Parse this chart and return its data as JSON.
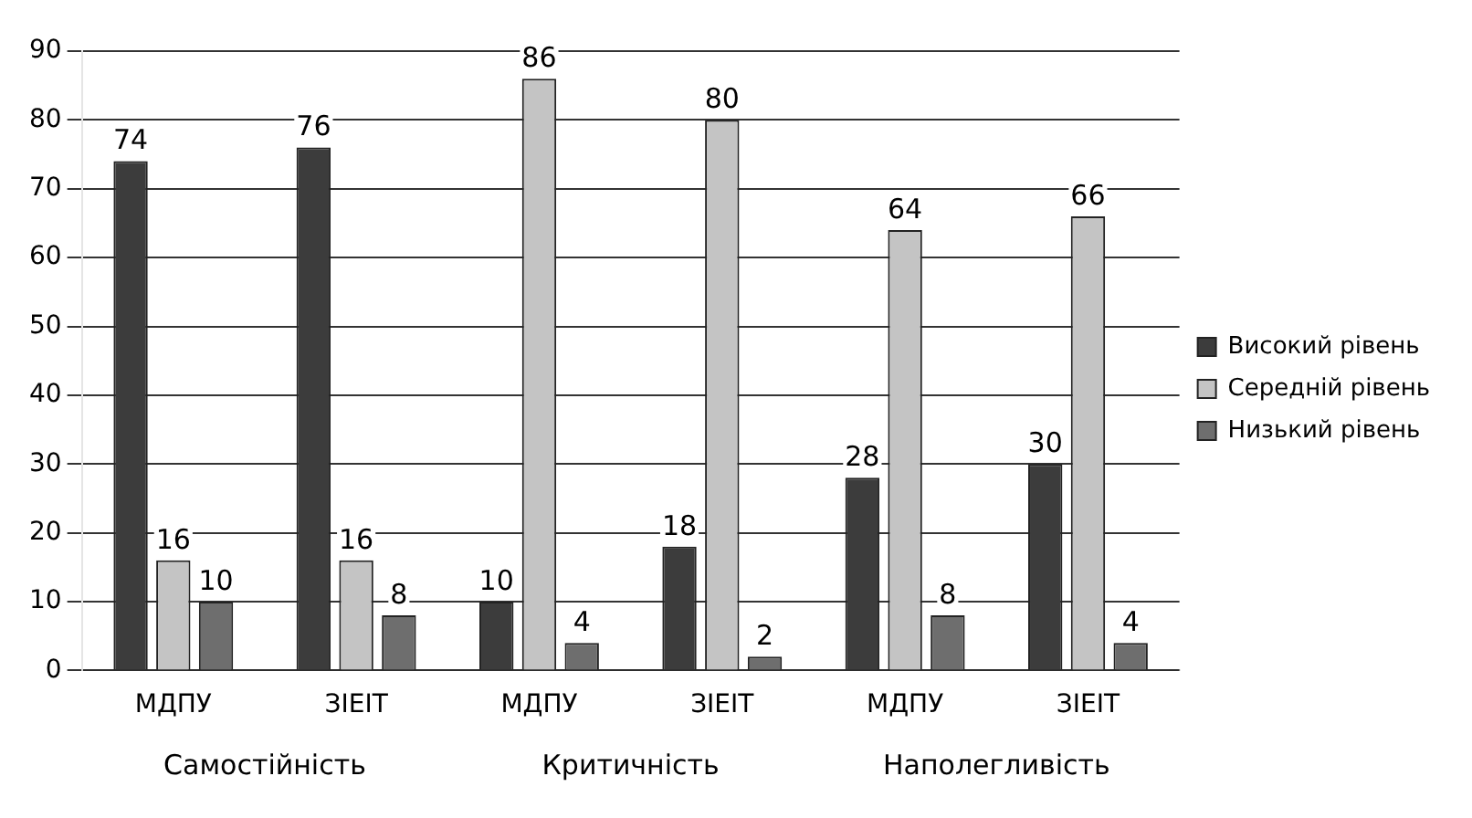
{
  "chart_data": {
    "type": "bar",
    "categories": [
      "МДПУ",
      "ЗІЕІТ",
      "МДПУ",
      "ЗІЕІТ",
      "МДПУ",
      "ЗІЕІТ"
    ],
    "series": [
      {
        "name": "Високий рівень",
        "color": "#3c3c3c",
        "values": [
          74,
          76,
          10,
          18,
          28,
          30
        ]
      },
      {
        "name": "Середній рівень",
        "color": "#c4c4c4",
        "values": [
          16,
          16,
          86,
          80,
          64,
          66
        ]
      },
      {
        "name": "Низький рівень",
        "color": "#6e6e6e",
        "values": [
          10,
          8,
          4,
          2,
          8,
          4
        ]
      }
    ],
    "ylim": [
      0,
      90
    ],
    "yticks": [
      0,
      10,
      20,
      30,
      40,
      50,
      60,
      70,
      80,
      90
    ],
    "grid": "y",
    "legend": "right",
    "data_labels": true,
    "annotations": [
      "Самостійність",
      "Критичність",
      "Наполегливість"
    ]
  }
}
